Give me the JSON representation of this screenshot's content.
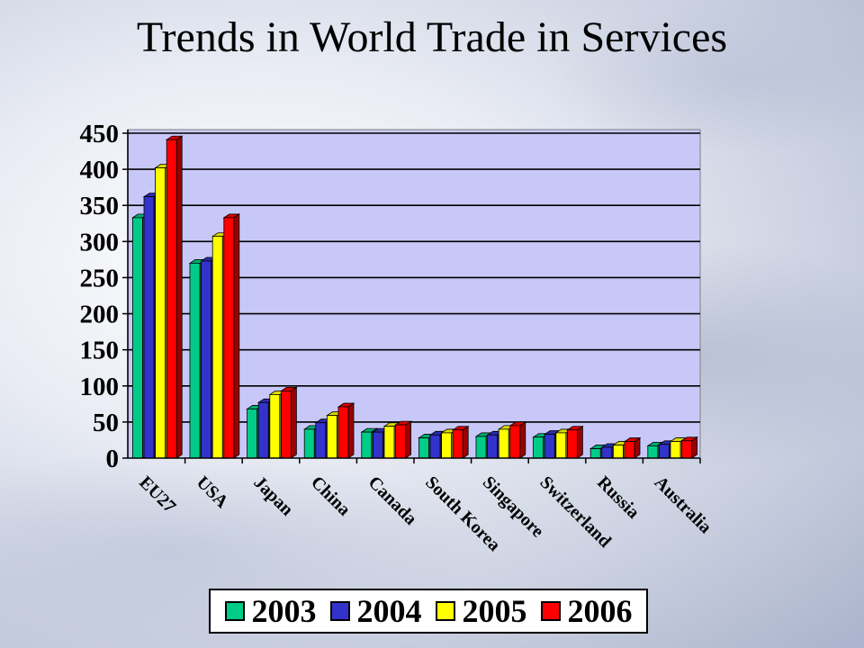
{
  "title": "Trends in World Trade in Services",
  "chart_data": {
    "type": "bar",
    "title": "Trends in World Trade in Services",
    "xlabel": "",
    "ylabel": "",
    "ylim": [
      0,
      450
    ],
    "yticks": [
      0,
      50,
      100,
      150,
      200,
      250,
      300,
      350,
      400,
      450
    ],
    "grid": true,
    "legend_position": "bottom",
    "categories": [
      "EU27",
      "USA",
      "Japan",
      "China",
      "Canada",
      "South Korea",
      "Singapore",
      "Switzerland",
      "Russia",
      "Australia"
    ],
    "series": [
      {
        "name": "2003",
        "color": "#00cc88",
        "values": [
          333,
          270,
          68,
          40,
          36,
          28,
          30,
          29,
          13,
          17
        ]
      },
      {
        "name": "2004",
        "color": "#3333cc",
        "values": [
          362,
          273,
          77,
          49,
          36,
          32,
          32,
          33,
          15,
          19
        ]
      },
      {
        "name": "2005",
        "color": "#ffff00",
        "values": [
          402,
          307,
          88,
          59,
          44,
          35,
          40,
          35,
          18,
          23
        ]
      },
      {
        "name": "2006",
        "color": "#ff0000",
        "values": [
          441,
          333,
          93,
          71,
          46,
          39,
          45,
          39,
          23,
          24
        ]
      }
    ]
  }
}
